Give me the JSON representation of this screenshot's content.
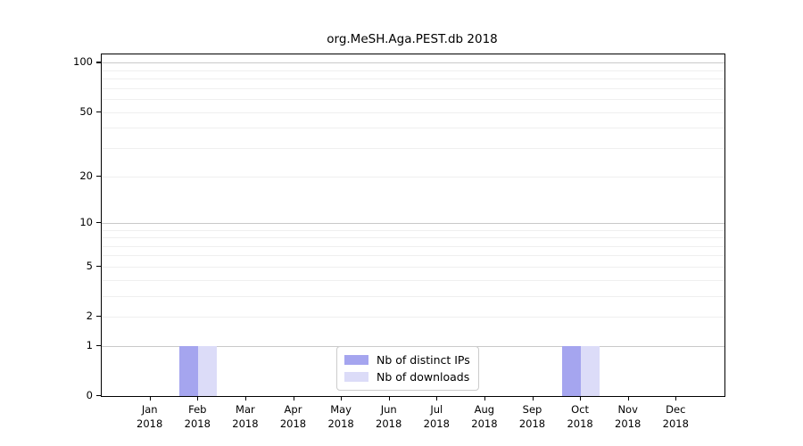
{
  "title": "org.MeSH.Aga.PEST.db 2018",
  "colors": {
    "distinct_ips_bar": "#a5a5ef",
    "downloads_bar": "#dcdcf8",
    "grid_decade": "#c9c9c9",
    "grid_other": "#efefef",
    "axis": "#000000",
    "legend_border": "#cccccc"
  },
  "chart_data": {
    "type": "bar",
    "title": "org.MeSH.Aga.PEST.db 2018",
    "xlabel": "",
    "ylabel": "",
    "scale": "log1p",
    "categories": [
      "Jan",
      "Feb",
      "Mar",
      "Apr",
      "May",
      "Jun",
      "Jul",
      "Aug",
      "Sep",
      "Oct",
      "Nov",
      "Dec"
    ],
    "year": "2018",
    "series": [
      {
        "name": "Nb of distinct IPs",
        "color": "#a5a5ef",
        "values": [
          0,
          1,
          0,
          0,
          0,
          0,
          0,
          0,
          0,
          1,
          0,
          0
        ]
      },
      {
        "name": "Nb of downloads",
        "color": "#dcdcf8",
        "values": [
          0,
          1,
          0,
          0,
          0,
          0,
          0,
          0,
          0,
          1,
          0,
          0
        ]
      }
    ],
    "y_ticks": [
      0,
      1,
      2,
      5,
      10,
      20,
      50,
      100
    ],
    "grid_decade_values": [
      1,
      10,
      100
    ],
    "grid_other_values": [
      2,
      3,
      4,
      5,
      6,
      7,
      8,
      9,
      20,
      30,
      40,
      50,
      60,
      70,
      80,
      90
    ],
    "ylim": [
      0,
      113
    ],
    "grid": true,
    "legend_position": "lower center",
    "legend_entries": [
      "Nb of distinct IPs",
      "Nb of downloads"
    ]
  }
}
